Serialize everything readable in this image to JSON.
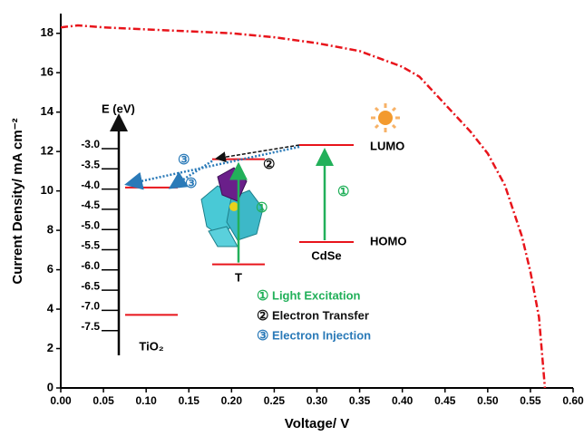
{
  "chart_data": {
    "type": "line",
    "x_label": "Voltage/ V",
    "y_label": "Current Density/ mA cm⁻²",
    "x": [
      0,
      0.02,
      0.05,
      0.1,
      0.15,
      0.2,
      0.25,
      0.3,
      0.35,
      0.4,
      0.42,
      0.45,
      0.48,
      0.5,
      0.52,
      0.54,
      0.55,
      0.56,
      0.567
    ],
    "values": [
      18.3,
      18.4,
      18.3,
      18.2,
      18.1,
      18.0,
      17.8,
      17.5,
      17.1,
      16.3,
      15.8,
      14.4,
      13.0,
      11.9,
      10.3,
      7.7,
      5.9,
      3.6,
      0
    ],
    "color": "#e8141b",
    "xlim": [
      0,
      0.6
    ],
    "ylim": [
      0,
      19
    ],
    "xticks": [
      {
        "value": 0,
        "label": "0.00"
      },
      {
        "value": 0.05,
        "label": "0.05"
      },
      {
        "value": 0.1,
        "label": "0.10"
      },
      {
        "value": 0.15,
        "label": "0.15"
      },
      {
        "value": 0.2,
        "label": "0.20"
      },
      {
        "value": 0.25,
        "label": "0.25"
      },
      {
        "value": 0.3,
        "label": "0.30"
      },
      {
        "value": 0.35,
        "label": "0.35"
      },
      {
        "value": 0.4,
        "label": "0.40"
      },
      {
        "value": 0.45,
        "label": "0.45"
      },
      {
        "value": 0.5,
        "label": "0.50"
      },
      {
        "value": 0.55,
        "label": "0.55"
      },
      {
        "value": 0.6,
        "label": "0.60"
      }
    ],
    "yticks": [
      0,
      2,
      4,
      6,
      8,
      10,
      12,
      14,
      16,
      18
    ]
  },
  "inset": {
    "axis_label": "E (eV)",
    "ticks": [
      {
        "value": -3,
        "label": "-3.0"
      },
      {
        "value": -3.5,
        "label": "-3.5"
      },
      {
        "value": -4,
        "label": "-4.0"
      },
      {
        "value": -4.5,
        "label": "-4.5"
      },
      {
        "value": -5,
        "label": "-5.0"
      },
      {
        "value": -5.5,
        "label": "-5.5"
      },
      {
        "value": -6,
        "label": "-6.0"
      },
      {
        "value": -6.5,
        "label": "-6.5"
      },
      {
        "value": -7,
        "label": "-7.0"
      },
      {
        "value": -7.5,
        "label": "-7.5"
      }
    ],
    "levels": [
      {
        "name": "TiO₂",
        "upper": -4.05,
        "lower": -7.2
      },
      {
        "name": "T",
        "upper": -3.35,
        "lower": -5.95
      },
      {
        "name": "CdSe",
        "upper": -3.0,
        "lower": -5.4
      }
    ],
    "lumo_label": "LUMO",
    "homo_label": "HOMO",
    "markers": [
      "①",
      "②",
      "③"
    ],
    "legend": [
      {
        "mark": "①",
        "text": "Light Excitation",
        "color": "#22b05a"
      },
      {
        "mark": "②",
        "text": "Electron Transfer",
        "color": "#111111"
      },
      {
        "mark": "③",
        "text": "Electron Injection",
        "color": "#2a7ab8"
      }
    ]
  }
}
